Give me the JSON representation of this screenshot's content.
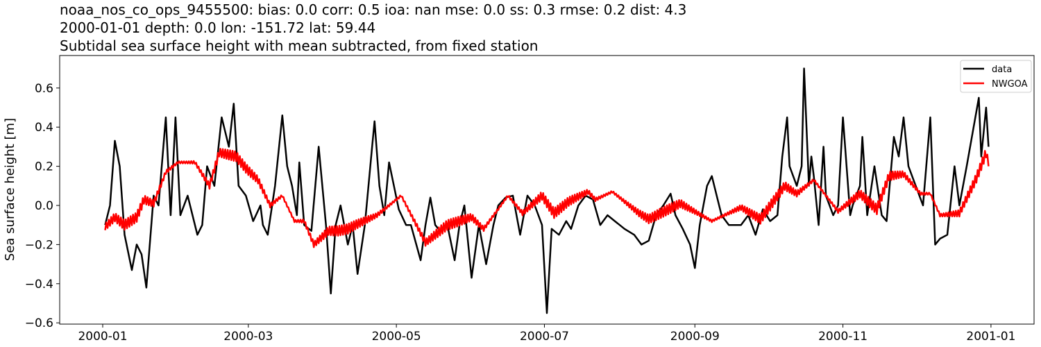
{
  "chart_data": {
    "type": "line",
    "title_lines": [
      "noaa_nos_co_ops_9455500: bias: 0.0  corr: 0.5  ioa: nan  mse: 0.0  ss: 0.3  rmse: 0.2  dist: 4.3",
      "2000-01-01 depth: 0.0 lon: -151.72 lat: 59.44",
      "Subtidal sea surface height with mean subtracted, from fixed station"
    ],
    "xlabel": "",
    "ylabel": "Sea surface height [m]",
    "xlim": [
      "2000-01-01",
      "2001-01-01"
    ],
    "ylim": [
      -0.62,
      0.75
    ],
    "xticks": [
      "2000-01",
      "2000-03",
      "2000-05",
      "2000-07",
      "2000-09",
      "2000-11",
      "2001-01"
    ],
    "yticks": [
      "0.6",
      "0.4",
      "0.2",
      "0.0",
      "−0.2",
      "−0.4",
      "−0.6"
    ],
    "grid": false,
    "legend": "top-right",
    "series": [
      {
        "name": "data",
        "color": "#000000",
        "points": [
          [
            "2000-01-02",
            -0.1
          ],
          [
            "2000-01-04",
            0.0
          ],
          [
            "2000-01-06",
            0.33
          ],
          [
            "2000-01-08",
            0.2
          ],
          [
            "2000-01-10",
            -0.15
          ],
          [
            "2000-01-13",
            -0.33
          ],
          [
            "2000-01-15",
            -0.2
          ],
          [
            "2000-01-17",
            -0.25
          ],
          [
            "2000-01-19",
            -0.42
          ],
          [
            "2000-01-22",
            0.05
          ],
          [
            "2000-01-24",
            0.0
          ],
          [
            "2000-01-27",
            0.45
          ],
          [
            "2000-01-29",
            -0.05
          ],
          [
            "2000-01-31",
            0.45
          ],
          [
            "2000-02-02",
            -0.05
          ],
          [
            "2000-02-05",
            0.05
          ],
          [
            "2000-02-09",
            -0.15
          ],
          [
            "2000-02-11",
            -0.1
          ],
          [
            "2000-02-13",
            0.2
          ],
          [
            "2000-02-16",
            0.1
          ],
          [
            "2000-02-19",
            0.45
          ],
          [
            "2000-02-22",
            0.3
          ],
          [
            "2000-02-24",
            0.52
          ],
          [
            "2000-02-26",
            0.1
          ],
          [
            "2000-02-29",
            0.05
          ],
          [
            "2000-03-03",
            -0.08
          ],
          [
            "2000-03-06",
            0.0
          ],
          [
            "2000-03-07",
            -0.1
          ],
          [
            "2000-03-09",
            -0.15
          ],
          [
            "2000-03-12",
            0.1
          ],
          [
            "2000-03-15",
            0.46
          ],
          [
            "2000-03-17",
            0.2
          ],
          [
            "2000-03-19",
            0.1
          ],
          [
            "2000-03-21",
            -0.05
          ],
          [
            "2000-03-22",
            0.22
          ],
          [
            "2000-03-24",
            -0.1
          ],
          [
            "2000-03-27",
            -0.13
          ],
          [
            "2000-03-30",
            0.3
          ],
          [
            "2000-04-02",
            -0.1
          ],
          [
            "2000-04-04",
            -0.45
          ],
          [
            "2000-04-06",
            -0.1
          ],
          [
            "2000-04-08",
            0.0
          ],
          [
            "2000-04-11",
            -0.2
          ],
          [
            "2000-04-13",
            -0.1
          ],
          [
            "2000-04-15",
            -0.35
          ],
          [
            "2000-04-18",
            -0.1
          ],
          [
            "2000-04-21",
            0.3
          ],
          [
            "2000-04-22",
            0.43
          ],
          [
            "2000-04-24",
            0.1
          ],
          [
            "2000-04-26",
            -0.05
          ],
          [
            "2000-04-28",
            0.22
          ],
          [
            "2000-04-30",
            0.1
          ],
          [
            "2000-05-02",
            -0.02
          ],
          [
            "2000-05-05",
            -0.1
          ],
          [
            "2000-05-07",
            -0.1
          ],
          [
            "2000-05-11",
            -0.28
          ],
          [
            "2000-05-13",
            -0.1
          ],
          [
            "2000-05-15",
            0.04
          ],
          [
            "2000-05-17",
            -0.1
          ],
          [
            "2000-05-19",
            -0.13
          ],
          [
            "2000-05-22",
            -0.1
          ],
          [
            "2000-05-25",
            -0.28
          ],
          [
            "2000-05-27",
            -0.1
          ],
          [
            "2000-05-29",
            0.0
          ],
          [
            "2000-06-01",
            -0.37
          ],
          [
            "2000-06-04",
            -0.1
          ],
          [
            "2000-06-07",
            -0.3
          ],
          [
            "2000-06-10",
            -0.1
          ],
          [
            "2000-06-12",
            0.0
          ],
          [
            "2000-06-15",
            0.04
          ],
          [
            "2000-06-18",
            0.05
          ],
          [
            "2000-06-21",
            -0.15
          ],
          [
            "2000-06-24",
            0.05
          ],
          [
            "2000-06-27",
            0.0
          ],
          [
            "2000-06-30",
            -0.1
          ],
          [
            "2000-07-02",
            -0.55
          ],
          [
            "2000-07-04",
            -0.12
          ],
          [
            "2000-07-07",
            -0.15
          ],
          [
            "2000-07-10",
            -0.08
          ],
          [
            "2000-07-12",
            -0.12
          ],
          [
            "2000-07-15",
            0.0
          ],
          [
            "2000-07-18",
            0.05
          ],
          [
            "2000-07-21",
            0.03
          ],
          [
            "2000-07-24",
            -0.1
          ],
          [
            "2000-07-27",
            -0.05
          ],
          [
            "2000-07-30",
            -0.08
          ],
          [
            "2000-08-03",
            -0.12
          ],
          [
            "2000-08-07",
            -0.15
          ],
          [
            "2000-08-10",
            -0.2
          ],
          [
            "2000-08-13",
            -0.18
          ],
          [
            "2000-08-16",
            -0.05
          ],
          [
            "2000-08-19",
            0.0
          ],
          [
            "2000-08-22",
            0.06
          ],
          [
            "2000-08-24",
            -0.05
          ],
          [
            "2000-08-27",
            -0.12
          ],
          [
            "2000-08-30",
            -0.2
          ],
          [
            "2000-09-01",
            -0.32
          ],
          [
            "2000-09-03",
            -0.1
          ],
          [
            "2000-09-06",
            0.1
          ],
          [
            "2000-09-08",
            0.15
          ],
          [
            "2000-09-10",
            0.05
          ],
          [
            "2000-09-12",
            -0.05
          ],
          [
            "2000-09-15",
            -0.1
          ],
          [
            "2000-09-18",
            -0.1
          ],
          [
            "2000-09-20",
            -0.1
          ],
          [
            "2000-09-23",
            -0.05
          ],
          [
            "2000-09-26",
            -0.15
          ],
          [
            "2000-09-29",
            -0.02
          ],
          [
            "2000-10-02",
            -0.08
          ],
          [
            "2000-10-05",
            -0.05
          ],
          [
            "2000-10-07",
            0.25
          ],
          [
            "2000-10-09",
            0.45
          ],
          [
            "2000-10-10",
            0.2
          ],
          [
            "2000-10-13",
            0.1
          ],
          [
            "2000-10-15",
            0.2
          ],
          [
            "2000-10-16",
            0.7
          ],
          [
            "2000-10-18",
            0.1
          ],
          [
            "2000-10-19",
            0.25
          ],
          [
            "2000-10-20",
            0.15
          ],
          [
            "2000-10-22",
            -0.1
          ],
          [
            "2000-10-24",
            0.3
          ],
          [
            "2000-10-25",
            0.05
          ],
          [
            "2000-10-28",
            -0.05
          ],
          [
            "2000-10-30",
            0.0
          ],
          [
            "2000-11-01",
            0.45
          ],
          [
            "2000-11-04",
            -0.05
          ],
          [
            "2000-11-05",
            0.0
          ],
          [
            "2000-11-08",
            0.1
          ],
          [
            "2000-11-09",
            0.35
          ],
          [
            "2000-11-11",
            -0.05
          ],
          [
            "2000-11-14",
            0.2
          ],
          [
            "2000-11-17",
            -0.05
          ],
          [
            "2000-11-19",
            -0.08
          ],
          [
            "2000-11-22",
            0.35
          ],
          [
            "2000-11-24",
            0.25
          ],
          [
            "2000-11-26",
            0.45
          ],
          [
            "2000-11-28",
            0.2
          ],
          [
            "2000-12-01",
            0.1
          ],
          [
            "2000-12-04",
            0.0
          ],
          [
            "2000-12-07",
            0.45
          ],
          [
            "2000-12-09",
            -0.2
          ],
          [
            "2000-12-11",
            -0.17
          ],
          [
            "2000-12-14",
            -0.15
          ],
          [
            "2000-12-17",
            0.2
          ],
          [
            "2000-12-19",
            0.0
          ],
          [
            "2000-12-22",
            0.2
          ],
          [
            "2000-12-27",
            0.55
          ],
          [
            "2000-12-28",
            0.25
          ],
          [
            "2000-12-30",
            0.5
          ],
          [
            "2000-12-31",
            0.3
          ]
        ]
      },
      {
        "name": "NWGOA",
        "color": "#ff0000",
        "points": [
          [
            "2000-01-02",
            -0.11
          ],
          [
            "2000-01-06",
            -0.06
          ],
          [
            "2000-01-10",
            -0.1
          ],
          [
            "2000-01-15",
            -0.06
          ],
          [
            "2000-01-18",
            0.03
          ],
          [
            "2000-01-22",
            0.01
          ],
          [
            "2000-01-27",
            0.17
          ],
          [
            "2000-02-01",
            0.22
          ],
          [
            "2000-02-08",
            0.22
          ],
          [
            "2000-02-14",
            0.1
          ],
          [
            "2000-02-18",
            0.27
          ],
          [
            "2000-02-25",
            0.25
          ],
          [
            "2000-02-29",
            0.19
          ],
          [
            "2000-03-05",
            0.13
          ],
          [
            "2000-03-10",
            0.0
          ],
          [
            "2000-03-15",
            0.05
          ],
          [
            "2000-03-20",
            -0.08
          ],
          [
            "2000-03-24",
            -0.08
          ],
          [
            "2000-03-28",
            -0.2
          ],
          [
            "2000-04-03",
            -0.13
          ],
          [
            "2000-04-07",
            -0.13
          ],
          [
            "2000-04-11",
            -0.12
          ],
          [
            "2000-04-14",
            -0.1
          ],
          [
            "2000-04-23",
            -0.05
          ],
          [
            "2000-05-03",
            0.05
          ],
          [
            "2000-05-13",
            -0.19
          ],
          [
            "2000-05-22",
            -0.1
          ],
          [
            "2000-06-01",
            -0.06
          ],
          [
            "2000-06-06",
            -0.12
          ],
          [
            "2000-06-16",
            0.05
          ],
          [
            "2000-06-22",
            -0.04
          ],
          [
            "2000-06-30",
            0.05
          ],
          [
            "2000-07-05",
            -0.04
          ],
          [
            "2000-07-11",
            0.02
          ],
          [
            "2000-07-19",
            0.07
          ],
          [
            "2000-07-22",
            0.03
          ],
          [
            "2000-07-29",
            0.07
          ],
          [
            "2000-08-09",
            -0.04
          ],
          [
            "2000-08-13",
            -0.07
          ],
          [
            "2000-08-26",
            0.01
          ],
          [
            "2000-09-08",
            -0.08
          ],
          [
            "2000-09-20",
            -0.01
          ],
          [
            "2000-09-28",
            -0.07
          ],
          [
            "2000-10-08",
            0.1
          ],
          [
            "2000-10-13",
            0.06
          ],
          [
            "2000-10-20",
            0.13
          ],
          [
            "2000-10-30",
            -0.03
          ],
          [
            "2000-11-08",
            0.06
          ],
          [
            "2000-11-15",
            -0.02
          ],
          [
            "2000-11-20",
            0.15
          ],
          [
            "2000-11-26",
            0.16
          ],
          [
            "2000-12-03",
            0.06
          ],
          [
            "2000-12-07",
            0.06
          ],
          [
            "2000-12-11",
            -0.05
          ],
          [
            "2000-12-19",
            -0.04
          ],
          [
            "2000-12-26",
            0.14
          ],
          [
            "2000-12-30",
            0.27
          ],
          [
            "2000-12-31",
            0.2
          ]
        ]
      }
    ]
  }
}
